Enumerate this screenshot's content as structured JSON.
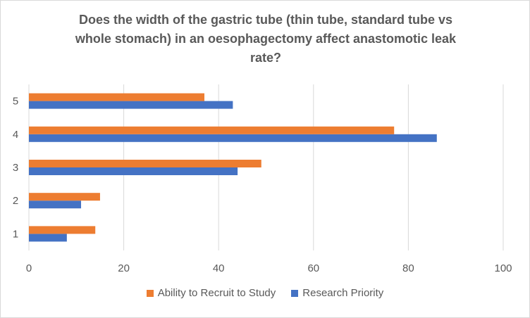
{
  "chart_data": {
    "type": "bar",
    "orientation": "horizontal",
    "title_lines": [
      "Does the width of the gastric tube (thin tube, standard tube vs",
      "whole stomach) in an oesophagectomy affect anastomotic leak",
      "rate?"
    ],
    "categories": [
      "1",
      "2",
      "3",
      "4",
      "5"
    ],
    "series": [
      {
        "name": "Research Priority",
        "color": "#4472c4",
        "values": [
          8,
          11,
          44,
          86,
          43
        ]
      },
      {
        "name": "Ability to Recruit to Study",
        "color": "#ed7d31",
        "values": [
          14,
          15,
          49,
          77,
          37
        ]
      }
    ],
    "xlim": [
      0,
      100
    ],
    "x_ticks": [
      "0",
      "20",
      "40",
      "60",
      "80",
      "100"
    ],
    "gridlines": true,
    "legend_position": "bottom",
    "legend_order": [
      "Ability to Recruit to Study",
      "Research Priority"
    ]
  }
}
